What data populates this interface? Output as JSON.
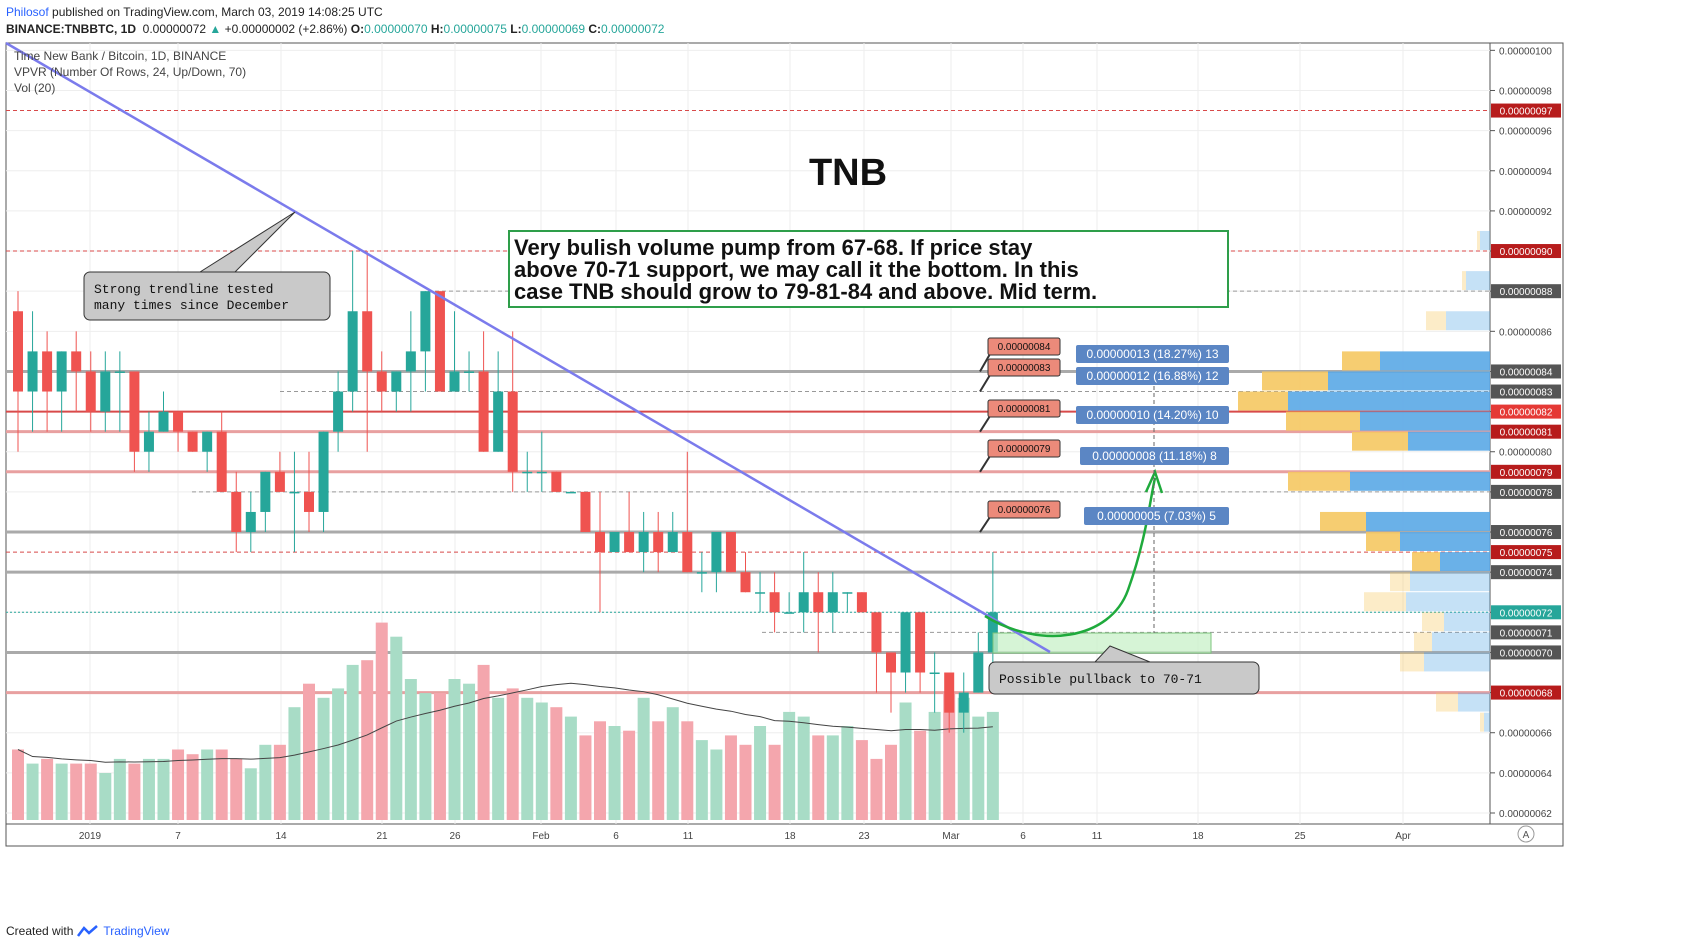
{
  "header": {
    "author": "Philosof",
    "published": "published on TradingView.com, March 03, 2019 14:08:25 UTC",
    "symbol_line": "BINANCE:TNBBTC, 1D",
    "last": "0.00000072",
    "change": "+0.00000002 (+2.86%)",
    "o_label": "O:",
    "o": "0.00000070",
    "h_label": "H:",
    "h": "0.00000075",
    "l_label": "L:",
    "l": "0.00000069",
    "c_label": "C:",
    "c": "0.00000072"
  },
  "footer": {
    "created_with": "Created with",
    "brand": "TradingView"
  },
  "chart_data": {
    "type": "candlestick",
    "title": "TNB",
    "legend": [
      "Time New Bank / Bitcoin, 1D, BINANCE",
      "VPVR (Number Of Rows, 24, Up/Down, 70)",
      "Vol (20)"
    ],
    "ylim": [
      6.2e-07,
      1.01e-06
    ],
    "y_ticks": [
      "0.00000100",
      "0.00000098",
      "0.00000096",
      "0.00000094",
      "0.00000092",
      "0.00000090",
      "0.00000088",
      "0.00000086",
      "0.00000084",
      "0.00000082",
      "0.00000080",
      "0.00000078",
      "0.00000076",
      "0.00000074",
      "0.00000072",
      "0.00000070",
      "0.00000068",
      "0.00000066",
      "0.00000064",
      "0.00000062"
    ],
    "x_ticks": [
      "2019",
      "7",
      "14",
      "21",
      "26",
      "Feb",
      "6",
      "11",
      "18",
      "23",
      "Mar",
      "6",
      "11",
      "18",
      "25",
      "Apr"
    ],
    "candles": [
      {
        "o": 87,
        "h": 88,
        "l": 80,
        "c": 83
      },
      {
        "o": 83,
        "h": 87,
        "l": 81,
        "c": 85
      },
      {
        "o": 85,
        "h": 86,
        "l": 81,
        "c": 83
      },
      {
        "o": 83,
        "h": 85,
        "l": 81,
        "c": 85
      },
      {
        "o": 85,
        "h": 86,
        "l": 82,
        "c": 84
      },
      {
        "o": 84,
        "h": 85,
        "l": 81,
        "c": 82
      },
      {
        "o": 82,
        "h": 85,
        "l": 81,
        "c": 84
      },
      {
        "o": 84,
        "h": 85,
        "l": 81,
        "c": 84
      },
      {
        "o": 84,
        "h": 84,
        "l": 79,
        "c": 80
      },
      {
        "o": 80,
        "h": 82,
        "l": 79,
        "c": 81
      },
      {
        "o": 81,
        "h": 83,
        "l": 81,
        "c": 82
      },
      {
        "o": 82,
        "h": 82,
        "l": 80,
        "c": 81
      },
      {
        "o": 81,
        "h": 81,
        "l": 80,
        "c": 80
      },
      {
        "o": 80,
        "h": 81,
        "l": 79,
        "c": 81
      },
      {
        "o": 81,
        "h": 82,
        "l": 78,
        "c": 78
      },
      {
        "o": 78,
        "h": 79,
        "l": 75,
        "c": 76
      },
      {
        "o": 76,
        "h": 78,
        "l": 75,
        "c": 77
      },
      {
        "o": 77,
        "h": 79,
        "l": 76,
        "c": 79
      },
      {
        "o": 79,
        "h": 80,
        "l": 78,
        "c": 78
      },
      {
        "o": 78,
        "h": 80,
        "l": 75,
        "c": 78
      },
      {
        "o": 78,
        "h": 80,
        "l": 76,
        "c": 77
      },
      {
        "o": 77,
        "h": 81,
        "l": 76,
        "c": 81
      },
      {
        "o": 81,
        "h": 84,
        "l": 80,
        "c": 83
      },
      {
        "o": 83,
        "h": 90,
        "l": 82,
        "c": 87
      },
      {
        "o": 87,
        "h": 90,
        "l": 80,
        "c": 84
      },
      {
        "o": 84,
        "h": 85,
        "l": 82,
        "c": 83
      },
      {
        "o": 83,
        "h": 84,
        "l": 82,
        "c": 84
      },
      {
        "o": 84,
        "h": 87,
        "l": 82,
        "c": 85
      },
      {
        "o": 85,
        "h": 88,
        "l": 83,
        "c": 88
      },
      {
        "o": 88,
        "h": 88,
        "l": 83,
        "c": 83
      },
      {
        "o": 83,
        "h": 87,
        "l": 83,
        "c": 84
      },
      {
        "o": 84,
        "h": 85,
        "l": 83,
        "c": 84
      },
      {
        "o": 84,
        "h": 86,
        "l": 80,
        "c": 80
      },
      {
        "o": 80,
        "h": 85,
        "l": 80,
        "c": 83
      },
      {
        "o": 83,
        "h": 86,
        "l": 78,
        "c": 79
      },
      {
        "o": 79,
        "h": 80,
        "l": 78,
        "c": 79
      },
      {
        "o": 79,
        "h": 81,
        "l": 78,
        "c": 79
      },
      {
        "o": 79,
        "h": 79,
        "l": 78,
        "c": 78
      },
      {
        "o": 78,
        "h": 78,
        "l": 78,
        "c": 78
      },
      {
        "o": 78,
        "h": 78,
        "l": 76,
        "c": 76
      },
      {
        "o": 76,
        "h": 78,
        "l": 72,
        "c": 75
      },
      {
        "o": 75,
        "h": 76,
        "l": 75,
        "c": 76
      },
      {
        "o": 76,
        "h": 78,
        "l": 75,
        "c": 75
      },
      {
        "o": 75,
        "h": 77,
        "l": 74,
        "c": 76
      },
      {
        "o": 76,
        "h": 77,
        "l": 74,
        "c": 75
      },
      {
        "o": 75,
        "h": 77,
        "l": 75,
        "c": 76
      },
      {
        "o": 76,
        "h": 80,
        "l": 74,
        "c": 74
      },
      {
        "o": 74,
        "h": 75,
        "l": 73,
        "c": 74
      },
      {
        "o": 74,
        "h": 76,
        "l": 73,
        "c": 76
      },
      {
        "o": 76,
        "h": 76,
        "l": 74,
        "c": 74
      },
      {
        "o": 74,
        "h": 75,
        "l": 73,
        "c": 73
      },
      {
        "o": 73,
        "h": 74,
        "l": 72,
        "c": 73
      },
      {
        "o": 73,
        "h": 74,
        "l": 71,
        "c": 72
      },
      {
        "o": 72,
        "h": 73,
        "l": 72,
        "c": 72
      },
      {
        "o": 72,
        "h": 75,
        "l": 71,
        "c": 73
      },
      {
        "o": 73,
        "h": 74,
        "l": 70,
        "c": 72
      },
      {
        "o": 72,
        "h": 74,
        "l": 71,
        "c": 73
      },
      {
        "o": 73,
        "h": 73,
        "l": 72,
        "c": 73
      },
      {
        "o": 73,
        "h": 73,
        "l": 72,
        "c": 72
      },
      {
        "o": 72,
        "h": 72,
        "l": 68,
        "c": 70
      },
      {
        "o": 70,
        "h": 70,
        "l": 67,
        "c": 69
      },
      {
        "o": 69,
        "h": 72,
        "l": 68,
        "c": 72
      },
      {
        "o": 72,
        "h": 72,
        "l": 68,
        "c": 69
      },
      {
        "o": 69,
        "h": 70,
        "l": 67,
        "c": 69
      },
      {
        "o": 69,
        "h": 69,
        "l": 66,
        "c": 67
      },
      {
        "o": 67,
        "h": 69,
        "l": 66,
        "c": 68
      },
      {
        "o": 68,
        "h": 71,
        "l": 68,
        "c": 70
      },
      {
        "o": 70,
        "h": 75,
        "l": 69,
        "c": 72
      }
    ],
    "volumes": [
      15,
      12,
      13,
      12,
      12,
      12,
      10,
      13,
      12,
      13,
      13,
      15,
      14,
      15,
      15,
      13,
      11,
      16,
      16,
      24,
      29,
      26,
      28,
      33,
      34,
      42,
      39,
      30,
      27,
      27,
      30,
      29,
      33,
      26,
      28,
      26,
      25,
      24,
      22,
      18,
      21,
      20,
      19,
      26,
      21,
      24,
      21,
      17,
      15,
      18,
      16,
      20,
      16,
      23,
      22,
      18,
      18,
      20,
      17,
      13,
      16,
      25,
      19,
      23,
      27,
      26,
      22,
      23
    ]
  },
  "price_labels": [
    "0.00000097",
    "0.00000090",
    "0.00000088",
    "0.00000084",
    "0.00000083",
    "0.00000082",
    "0.00000081",
    "0.00000079",
    "0.00000078",
    "0.00000076",
    "0.00000075",
    "0.00000074",
    "0.00000072",
    "0.00000071",
    "0.00000070",
    "0.00000068"
  ],
  "target_flags": [
    "0.00000084",
    "0.00000083",
    "0.00000081",
    "0.00000079",
    "0.00000076"
  ],
  "range_labels": [
    "0.00000013 (18.27%) 13",
    "0.00000012 (16.88%) 12",
    "0.00000010 (14.20%) 10",
    "0.00000008 (11.18%) 8",
    "0.00000005 (7.03%) 5"
  ],
  "annotations": {
    "trendline_note_1": "Strong trendline tested",
    "trendline_note_2": "many times since December",
    "main_note_1": "Very bulish volume pump from 67-68. If price stay",
    "main_note_2": "above 70-71 support, we may call it the bottom. In this",
    "main_note_3": "case TNB should grow to 79-81-84 and above. Mid term.",
    "pullback_note": "Possible pullback to 70-71",
    "scale_button": "A"
  },
  "colors": {
    "up": "#26a69a",
    "down": "#ef5350",
    "vol_up": "#a8dcc6",
    "vol_down": "#f4a6ad",
    "trendline": "#7b7bec",
    "arrow": "#1faa3c",
    "vp_up": "#5aa9e6",
    "vp_down": "#f5c862"
  }
}
